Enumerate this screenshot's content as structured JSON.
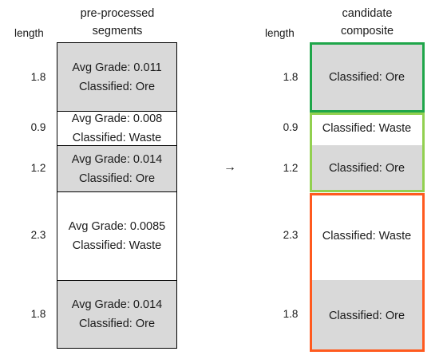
{
  "left": {
    "header": "pre-processed segments",
    "length_header": "length",
    "segments": [
      {
        "length": "1.8",
        "grade": "Avg Grade: 0.011",
        "class": "Classified: Ore",
        "type": "ore"
      },
      {
        "length": "0.9",
        "grade": "Avg Grade: 0.008",
        "class": "Classified: Waste",
        "type": "waste"
      },
      {
        "length": "1.2",
        "grade": "Avg Grade: 0.014",
        "class": "Classified: Ore",
        "type": "ore"
      },
      {
        "length": "2.3",
        "grade": "Avg Grade: 0.0085",
        "class": "Classified: Waste",
        "type": "waste"
      },
      {
        "length": "1.8",
        "grade": "Avg Grade: 0.014",
        "class": "Classified: Ore",
        "type": "ore"
      }
    ]
  },
  "arrow": "→",
  "right": {
    "header": "candidate composite",
    "length_header": "length",
    "segments": [
      {
        "length": "1.8",
        "class": "Classified: Ore",
        "type": "ore"
      },
      {
        "length": "0.9",
        "class": "Classified: Waste",
        "type": "waste"
      },
      {
        "length": "1.2",
        "class": "Classified: Ore",
        "type": "ore"
      },
      {
        "length": "2.3",
        "class": "Classified: Waste",
        "type": "waste"
      },
      {
        "length": "1.8",
        "class": "Classified: Ore",
        "type": "ore"
      }
    ],
    "composites": [
      {
        "color": "#1fa64a"
      },
      {
        "color": "#92d050"
      },
      {
        "color": "#ff5a1f"
      }
    ]
  }
}
